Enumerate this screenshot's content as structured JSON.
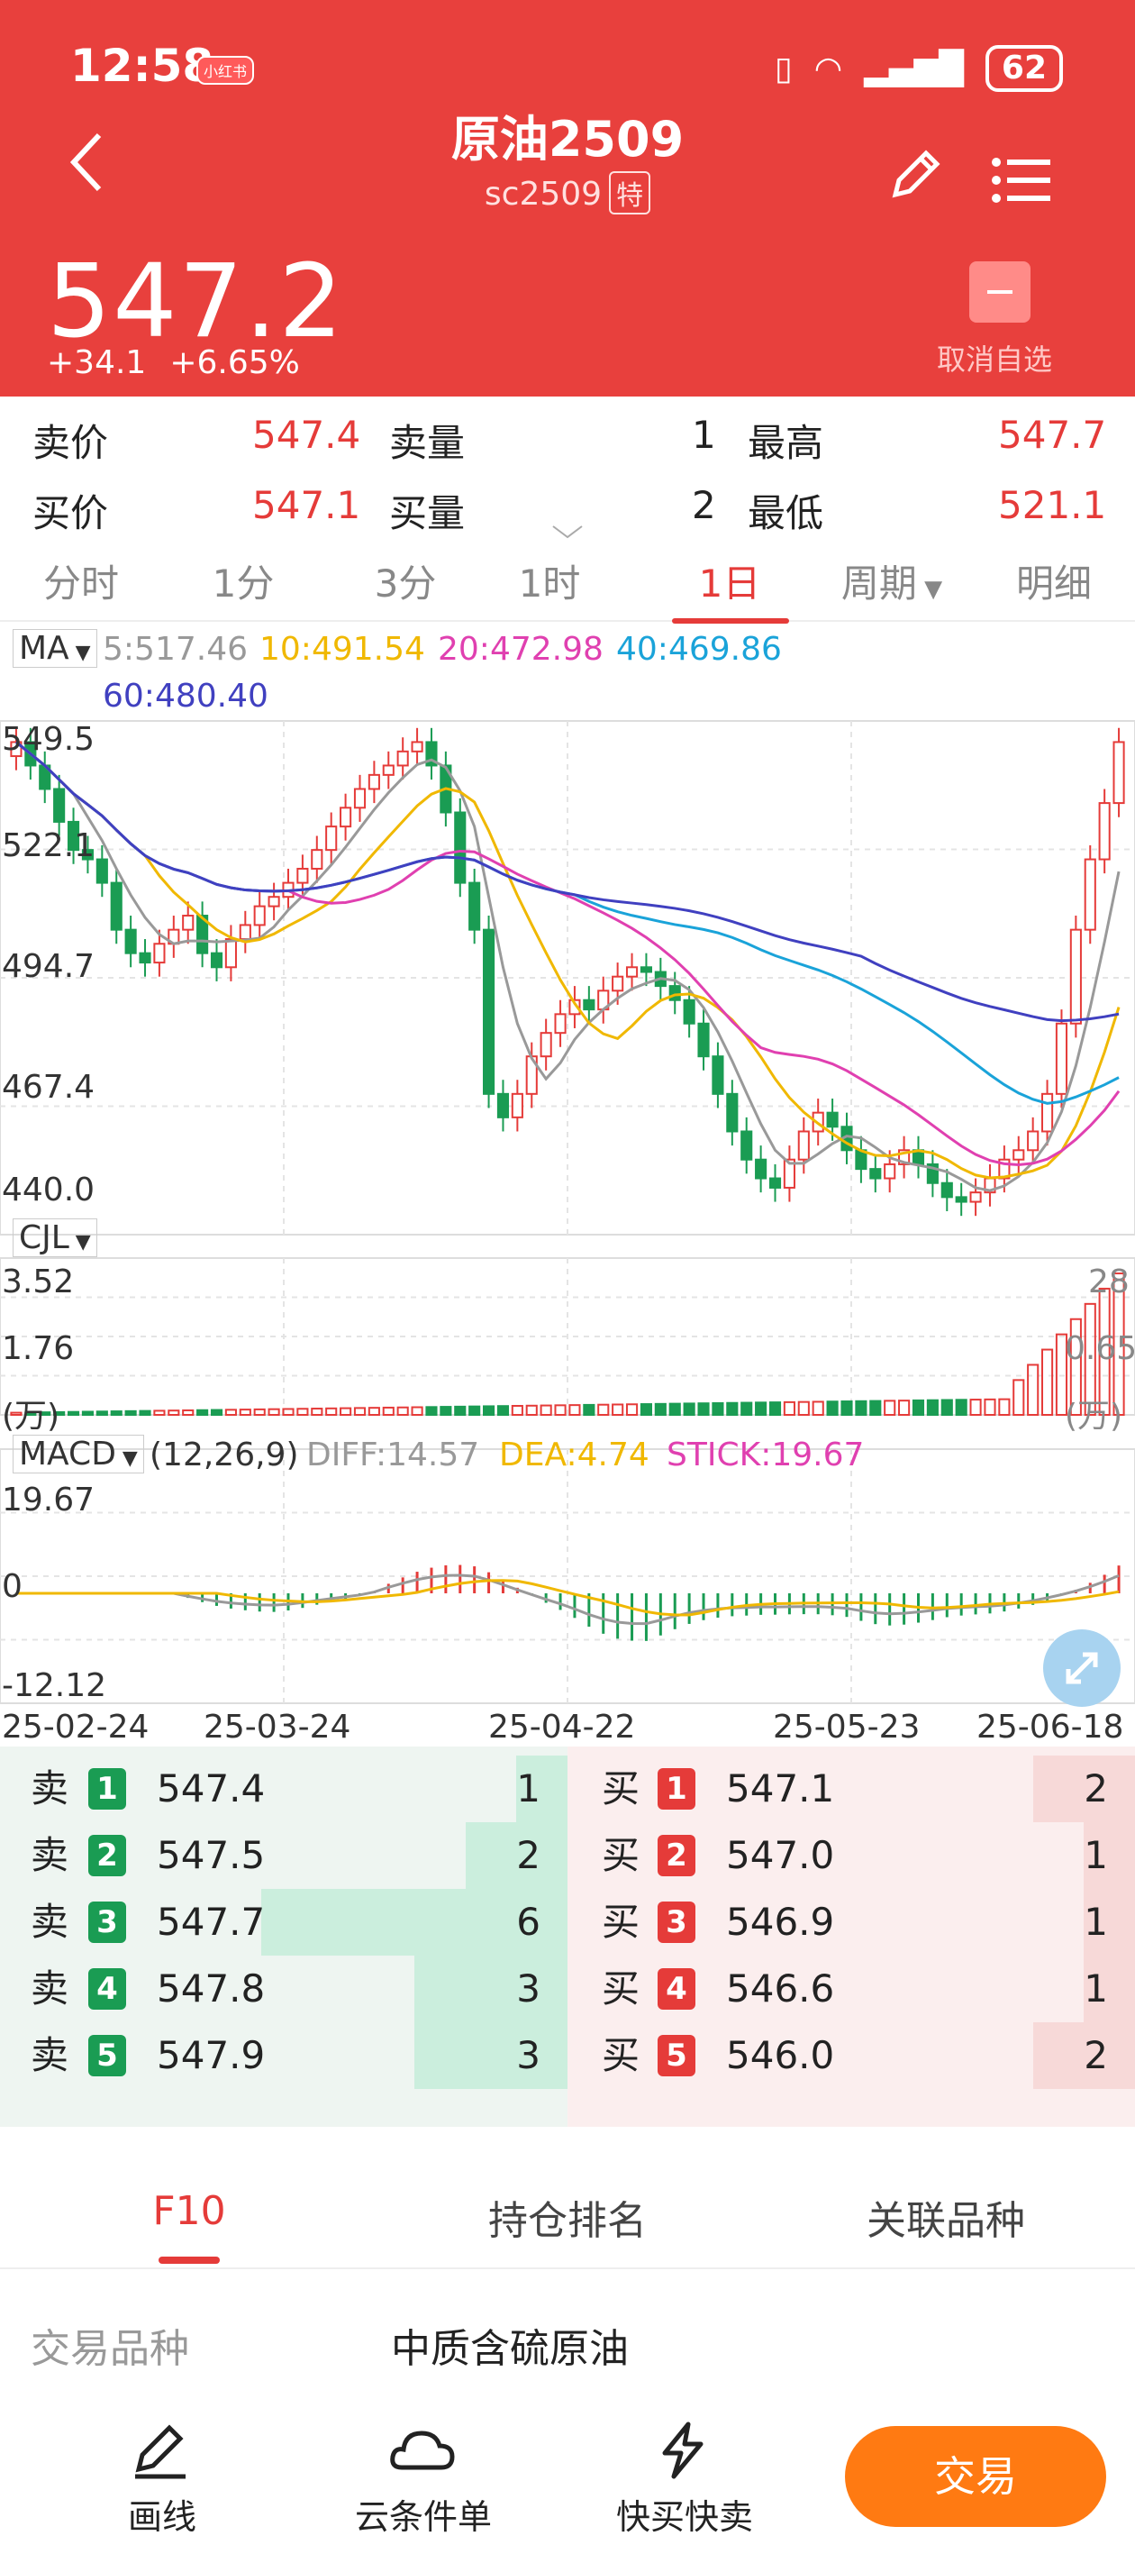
{
  "status": {
    "time": "12:58",
    "badge": "小红书",
    "battery": "62"
  },
  "header": {
    "title": "原油2509",
    "code": "sc2509",
    "special": "特",
    "price": "547.2",
    "change": "+34.1",
    "change_pct": "+6.65%",
    "unfav": "取消自选"
  },
  "quote": {
    "sell_price_label": "卖价",
    "sell_price": "547.4",
    "sell_vol_label": "卖量",
    "sell_vol": "1",
    "high_label": "最高",
    "high": "547.7",
    "buy_price_label": "买价",
    "buy_price": "547.1",
    "buy_vol_label": "买量",
    "buy_vol": "2",
    "low_label": "最低",
    "low": "521.1"
  },
  "tabs": [
    "分时",
    "1分",
    "3分",
    "1时",
    "1日",
    "周期",
    "明细"
  ],
  "ma_legend": {
    "label": "MA",
    "ma5": "5:517.46",
    "ma10": "10:491.54",
    "ma20": "20:472.98",
    "ma40": "40:469.86",
    "ma60": "60:480.40"
  },
  "price_axis": [
    "549.5",
    "522.1",
    "494.7",
    "467.4",
    "440.0"
  ],
  "vol_legend": {
    "label": "CJL",
    "max": "3.52",
    "mid": "1.76",
    "unit": "(万)",
    "right_top": "28",
    "right_mid": "0.65",
    "right_unit": "(万)"
  },
  "macd_legend": {
    "label": "MACD",
    "params": "(12,26,9)",
    "diff": "DIFF:14.57",
    "dea": "DEA:4.74",
    "stick": "STICK:19.67",
    "top": "19.67",
    "zero": "0",
    "bottom": "-12.12"
  },
  "dates": [
    "25-02-24",
    "25-03-24",
    "25-04-22",
    "25-05-23",
    "25-06-18"
  ],
  "colors": {
    "ma5": "#999999",
    "ma10": "#f0b800",
    "ma20": "#e040b0",
    "ma40": "#1aa3d9",
    "ma60": "#4040c0",
    "up": "#e53b39",
    "down": "#1a9c53"
  },
  "orderbook": {
    "sell_label": "卖",
    "buy_label": "买",
    "sells": [
      {
        "n": "1",
        "price": "547.4",
        "vol": "1"
      },
      {
        "n": "2",
        "price": "547.5",
        "vol": "2"
      },
      {
        "n": "3",
        "price": "547.7",
        "vol": "6"
      },
      {
        "n": "4",
        "price": "547.8",
        "vol": "3"
      },
      {
        "n": "5",
        "price": "547.9",
        "vol": "3"
      }
    ],
    "buys": [
      {
        "n": "1",
        "price": "547.1",
        "vol": "2"
      },
      {
        "n": "2",
        "price": "547.0",
        "vol": "1"
      },
      {
        "n": "3",
        "price": "546.9",
        "vol": "1"
      },
      {
        "n": "4",
        "price": "546.6",
        "vol": "1"
      },
      {
        "n": "5",
        "price": "546.0",
        "vol": "2"
      }
    ]
  },
  "f10": {
    "tabs": [
      "F10",
      "持仓排名",
      "关联品种"
    ],
    "row_label": "交易品种",
    "row_value": "中质含硫原油"
  },
  "bottom": {
    "draw": "画线",
    "cloud": "云条件单",
    "quick": "快买快卖",
    "trade": "交易"
  }
}
